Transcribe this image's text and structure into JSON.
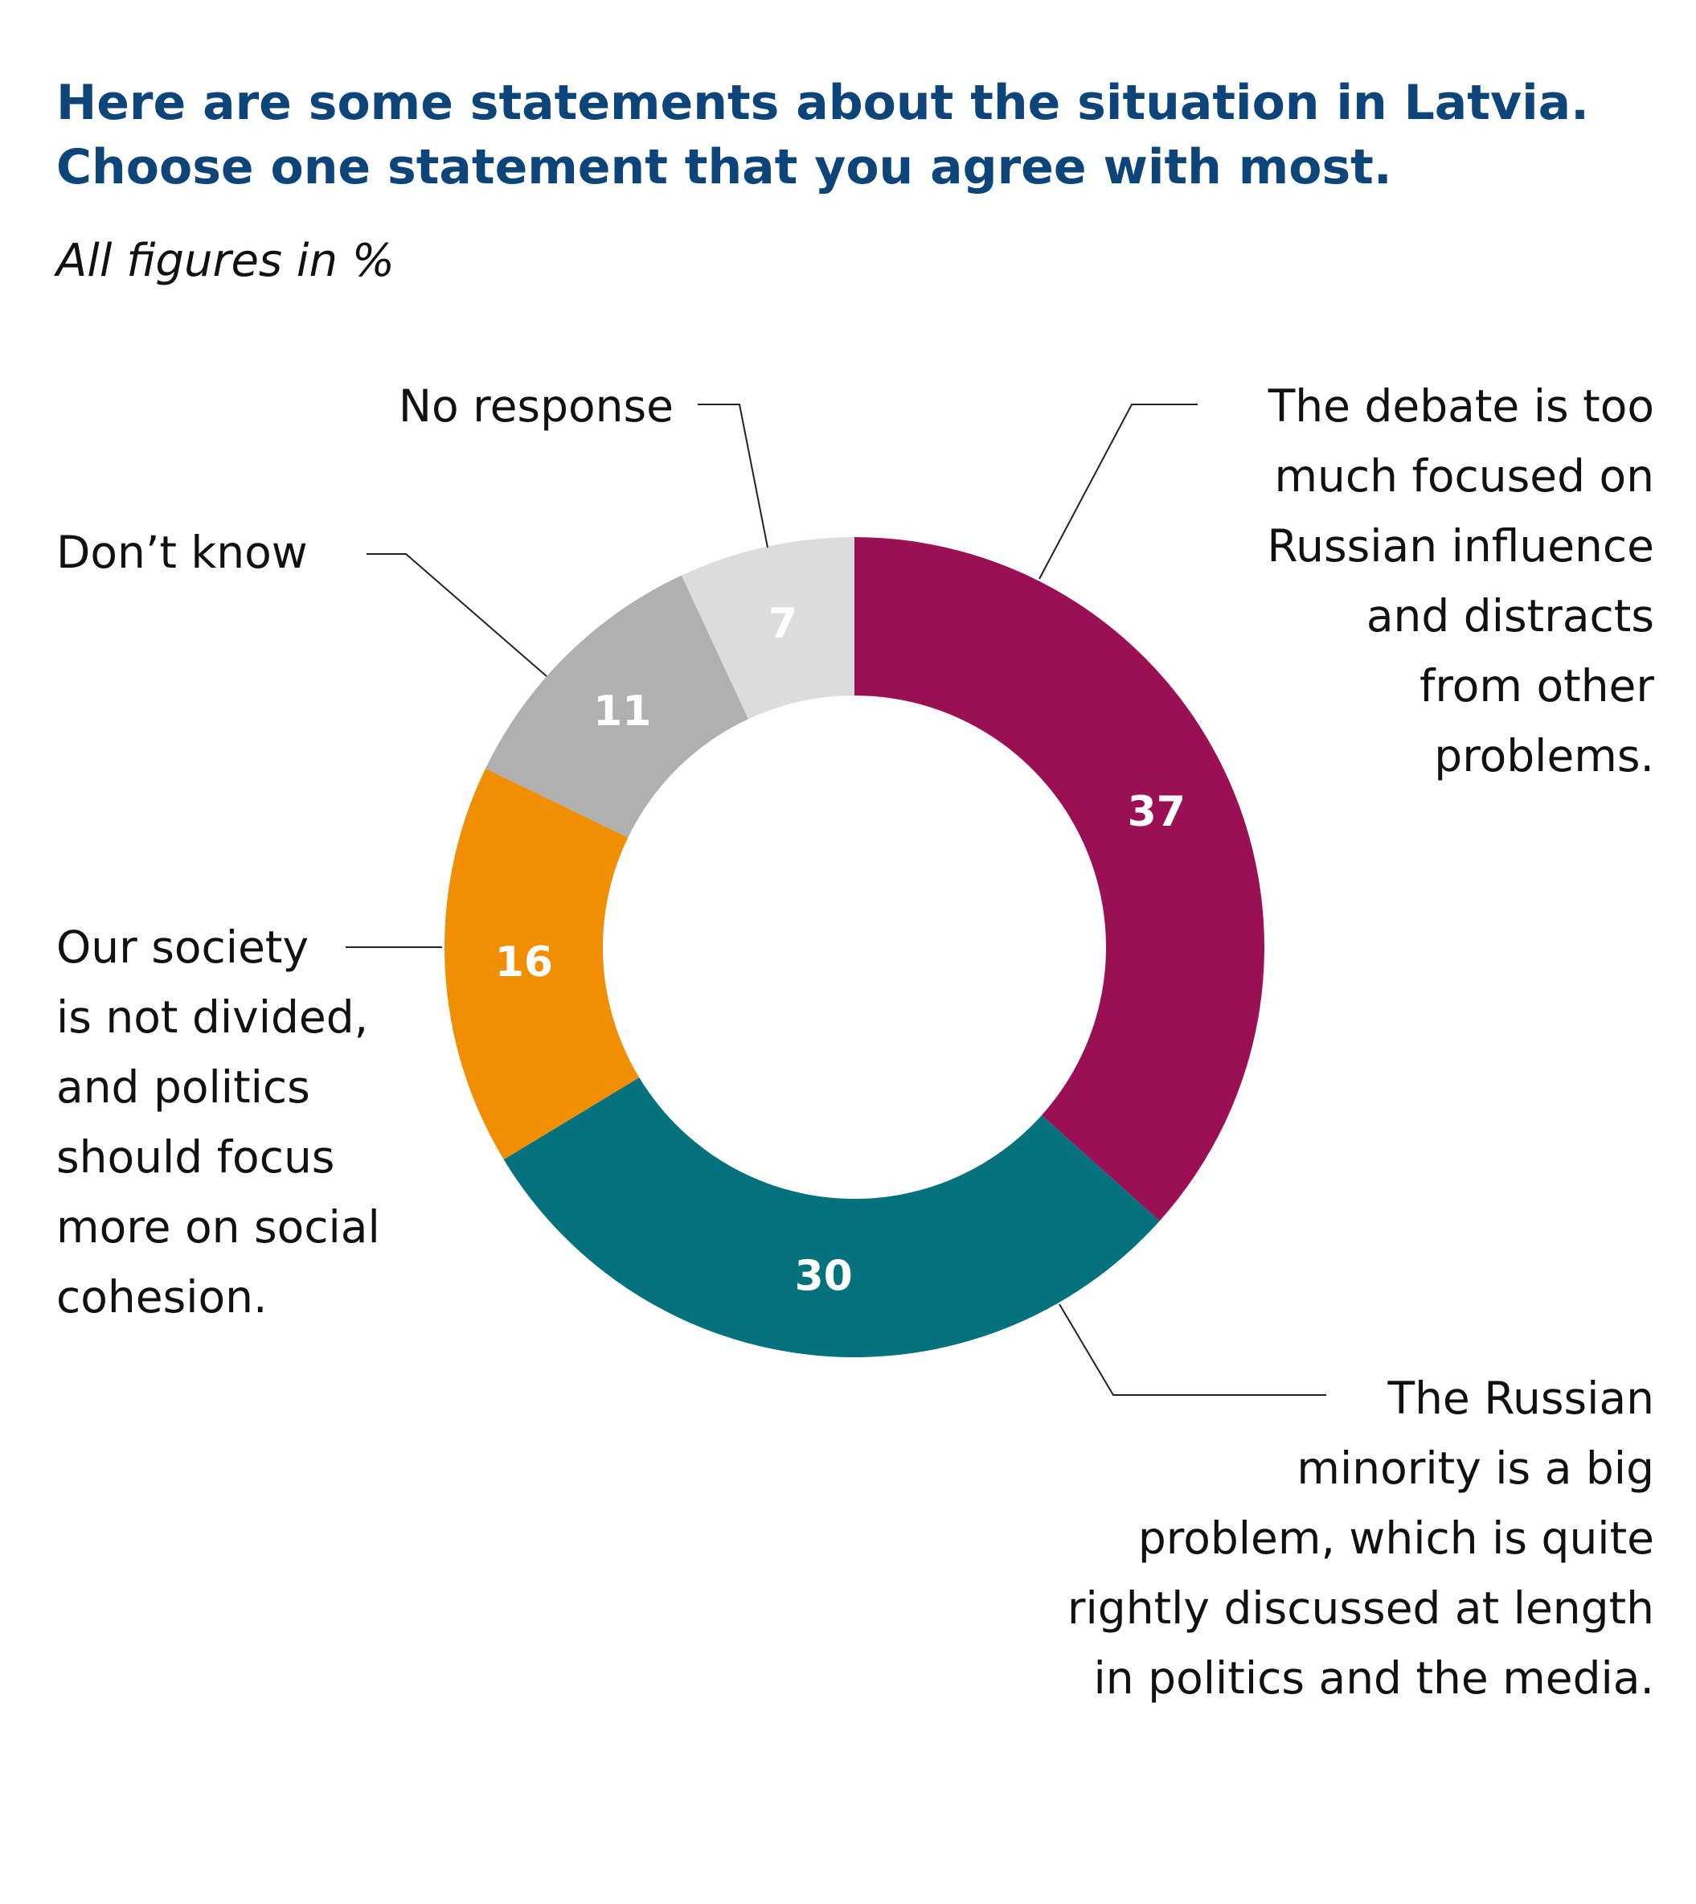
{
  "title": {
    "line1": "Here are some statements about the situation in Latvia.",
    "line2": "Choose one statement that you agree with most."
  },
  "subtitle": "All figures in %",
  "chart_data": {
    "type": "pie",
    "variant": "donut",
    "start": "top, clockwise",
    "slices": [
      {
        "value": 37,
        "color": "#9b0f55",
        "label": [
          "The debate is too",
          "much focused on",
          "Russian influence",
          "and distracts",
          "from other",
          "problems."
        ]
      },
      {
        "value": 30,
        "color": "#03727d",
        "label": [
          "The Russian",
          "minority is a big",
          "problem, which is quite",
          "rightly discussed at length",
          "in politics and the media."
        ]
      },
      {
        "value": 16,
        "color": "#f08f03",
        "label": [
          "Our society",
          "is not divided,",
          "and politics",
          "should focus",
          "more on social",
          "cohesion."
        ]
      },
      {
        "value": 11,
        "color": "#b0b0b0",
        "label": [
          "Don’t know"
        ]
      },
      {
        "value": 7,
        "color": "#dcdcdc",
        "label": [
          "No response"
        ]
      }
    ]
  }
}
